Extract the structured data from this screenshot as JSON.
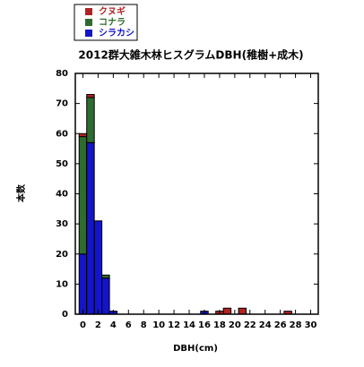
{
  "chart_data": {
    "type": "histogram",
    "title": "2012群大雑木林ヒスグラムDBH(稚樹+成木)",
    "x_label": "DBH(cm)",
    "y_label": "本数",
    "bins": [
      -0.5,
      0.5,
      1.5,
      2.5,
      3.5,
      4.5,
      5.5,
      6.5,
      7.5,
      8.5,
      9.5,
      10.5,
      11.5,
      12.5,
      13.5,
      14.5,
      15.5,
      16.5,
      17.5,
      18.5,
      19.5,
      20.5,
      21.5,
      22.5,
      23.5,
      24.5,
      25.5,
      26.5,
      27.5,
      28.5,
      29.5,
      30.5
    ],
    "series": [
      {
        "name": "クヌギ",
        "color": "#b22222",
        "values": [
          1,
          1,
          0,
          0,
          0,
          0,
          0,
          0,
          0,
          0,
          0,
          0,
          0,
          0,
          0,
          0,
          0,
          0,
          1,
          2,
          0,
          2,
          0,
          0,
          0,
          0,
          0,
          1,
          0,
          0,
          0
        ]
      },
      {
        "name": "コナラ",
        "color": "#2e6b2e",
        "values": [
          39,
          15,
          0,
          1,
          0,
          0,
          0,
          0,
          0,
          0,
          0,
          0,
          0,
          0,
          0,
          0,
          0,
          0,
          0,
          0,
          0,
          0,
          0,
          0,
          0,
          0,
          0,
          0,
          0,
          0,
          0
        ]
      },
      {
        "name": "シラカシ",
        "color": "#1414c8",
        "values": [
          20,
          57,
          31,
          12,
          1,
          0,
          0,
          0,
          0,
          0,
          0,
          0,
          0,
          0,
          0,
          0,
          1,
          0,
          0,
          0,
          0,
          0,
          0,
          0,
          0,
          0,
          0,
          0,
          0,
          0,
          0
        ]
      }
    ],
    "stacked": true,
    "xlim": [
      -1,
      31
    ],
    "xticks": [
      0,
      2,
      4,
      6,
      8,
      10,
      12,
      14,
      16,
      18,
      20,
      22,
      24,
      26,
      28,
      30
    ],
    "ylim": [
      0,
      80
    ],
    "yticks": [
      0,
      10,
      20,
      30,
      40,
      50,
      60,
      70,
      80
    ]
  }
}
